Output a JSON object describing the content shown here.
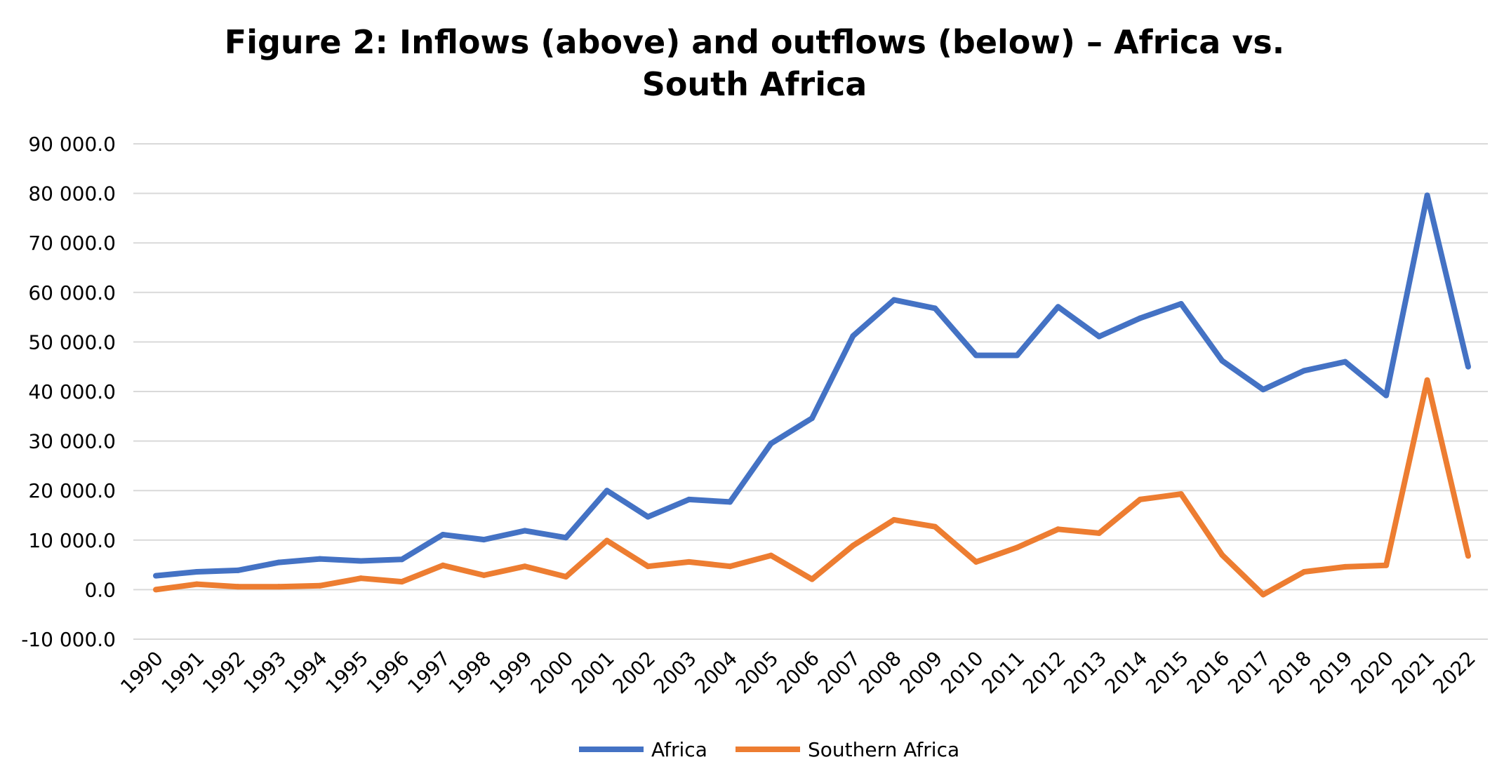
{
  "chart_data": {
    "type": "line",
    "title_lines": [
      "Figure 2: Inflows (above) and outflows (below) – Africa vs.",
      "South Africa"
    ],
    "xlabel": "",
    "ylabel": "",
    "ylim": [
      -10000,
      90000
    ],
    "yticks": [
      -10000,
      0,
      10000,
      20000,
      30000,
      40000,
      50000,
      60000,
      70000,
      80000,
      90000
    ],
    "ytick_labels": [
      "-10 000.0",
      "0.0",
      "10 000.0",
      "20 000.0",
      "30 000.0",
      "40 000.0",
      "50 000.0",
      "60 000.0",
      "70 000.0",
      "80 000.0",
      "90 000.0"
    ],
    "grid": true,
    "legend_position": "bottom",
    "categories": [
      "1990",
      "1991",
      "1992",
      "1993",
      "1994",
      "1995",
      "1996",
      "1997",
      "1998",
      "1999",
      "2000",
      "2001",
      "2002",
      "2003",
      "2004",
      "2005",
      "2006",
      "2007",
      "2008",
      "2009",
      "2010",
      "2011",
      "2012",
      "2013",
      "2014",
      "2015",
      "2016",
      "2017",
      "2018",
      "2019",
      "2020",
      "2021",
      "2022"
    ],
    "series": [
      {
        "name": "Africa",
        "color": "#4472C4",
        "values": [
          2800,
          3600,
          3900,
          5500,
          6200,
          5800,
          6100,
          11100,
          10100,
          11900,
          10500,
          20000,
          14700,
          18200,
          17700,
          29500,
          34600,
          51200,
          58500,
          56800,
          47300,
          47300,
          57100,
          51100,
          54800,
          57700,
          46200,
          40400,
          44200,
          46000,
          39200,
          79600,
          45000
        ]
      },
      {
        "name": "Southern Africa",
        "color": "#ED7D31",
        "values": [
          0,
          1100,
          600,
          600,
          800,
          2300,
          1600,
          4900,
          2900,
          4700,
          2600,
          9900,
          4700,
          5600,
          4700,
          6900,
          2100,
          8900,
          14100,
          12700,
          5600,
          8500,
          12200,
          11400,
          18200,
          19300,
          7000,
          -1000,
          3600,
          4600,
          4900,
          42300,
          6800
        ]
      }
    ]
  }
}
